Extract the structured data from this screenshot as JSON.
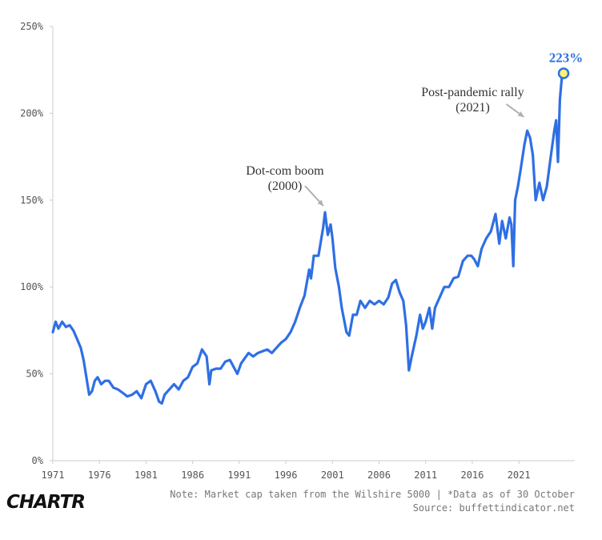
{
  "chart_data": {
    "type": "line",
    "title": "",
    "xlabel": "",
    "ylabel": "",
    "x_ticks": [
      "1971",
      "1976",
      "1981",
      "1986",
      "1991",
      "1996",
      "2001",
      "2006",
      "2011",
      "2016",
      "2021"
    ],
    "y_ticks": [
      "0%",
      "50%",
      "100%",
      "150%",
      "200%",
      "250%"
    ],
    "ylim": [
      0,
      250
    ],
    "xlim": [
      1971,
      2027
    ],
    "grid": false,
    "series": [
      {
        "color": "#2f6fe4",
        "x": [
          1971.0,
          1971.3,
          1971.6,
          1972.0,
          1972.4,
          1972.8,
          1973.2,
          1973.6,
          1974.0,
          1974.3,
          1974.6,
          1974.9,
          1975.2,
          1975.5,
          1975.8,
          1976.2,
          1976.6,
          1977.0,
          1977.5,
          1978.0,
          1978.5,
          1979.0,
          1979.5,
          1980.0,
          1980.5,
          1981.0,
          1981.5,
          1982.0,
          1982.4,
          1982.7,
          1983.0,
          1983.5,
          1984.0,
          1984.5,
          1985.0,
          1985.5,
          1986.0,
          1986.5,
          1987.0,
          1987.5,
          1987.8,
          1988.0,
          1988.5,
          1989.0,
          1989.5,
          1990.0,
          1990.5,
          1990.8,
          1991.2,
          1991.6,
          1992.0,
          1992.5,
          1993.0,
          1993.5,
          1994.0,
          1994.5,
          1995.0,
          1995.5,
          1996.0,
          1996.5,
          1997.0,
          1997.5,
          1998.0,
          1998.5,
          1998.7,
          1999.0,
          1999.5,
          2000.0,
          2000.2,
          2000.5,
          2000.8,
          2001.0,
          2001.3,
          2001.7,
          2002.0,
          2002.5,
          2002.8,
          2003.2,
          2003.6,
          2004.0,
          2004.5,
          2005.0,
          2005.5,
          2006.0,
          2006.5,
          2007.0,
          2007.4,
          2007.8,
          2008.2,
          2008.6,
          2008.9,
          2009.2,
          2009.5,
          2010.0,
          2010.4,
          2010.7,
          2011.0,
          2011.4,
          2011.7,
          2012.0,
          2012.5,
          2013.0,
          2013.5,
          2014.0,
          2014.5,
          2015.0,
          2015.5,
          2015.9,
          2016.2,
          2016.6,
          2017.0,
          2017.5,
          2018.0,
          2018.5,
          2018.9,
          2019.2,
          2019.6,
          2020.0,
          2020.2,
          2020.4,
          2020.6,
          2020.9,
          2021.2,
          2021.6,
          2021.9,
          2022.2,
          2022.5,
          2022.8,
          2023.2,
          2023.6,
          2024.0,
          2024.4,
          2024.8,
          2025.0,
          2025.2,
          2025.4,
          2025.6,
          2025.8
        ],
        "y": [
          74,
          80,
          76,
          80,
          77,
          78,
          75,
          70,
          65,
          58,
          48,
          38,
          40,
          46,
          48,
          44,
          46,
          46,
          42,
          41,
          39,
          37,
          38,
          40,
          36,
          44,
          46,
          40,
          34,
          33,
          38,
          41,
          44,
          41,
          46,
          48,
          54,
          56,
          64,
          60,
          44,
          52,
          53,
          53,
          57,
          58,
          53,
          50,
          56,
          59,
          62,
          60,
          62,
          63,
          64,
          62,
          65,
          68,
          70,
          74,
          80,
          88,
          95,
          110,
          105,
          118,
          118,
          134,
          143,
          130,
          136,
          128,
          111,
          100,
          88,
          74,
          72,
          84,
          84,
          92,
          88,
          92,
          90,
          92,
          90,
          94,
          102,
          104,
          97,
          92,
          78,
          52,
          60,
          72,
          84,
          76,
          80,
          88,
          76,
          88,
          94,
          100,
          100,
          105,
          106,
          115,
          118,
          118,
          116,
          112,
          122,
          128,
          132,
          142,
          125,
          138,
          128,
          140,
          136,
          112,
          150,
          158,
          168,
          182,
          190,
          186,
          176,
          150,
          160,
          150,
          158,
          174,
          190,
          196,
          172,
          208,
          220,
          223
        ]
      }
    ],
    "annotations": [
      {
        "id": "dotcom",
        "line1": "Dot-com boom",
        "line2": "(2000)"
      },
      {
        "id": "pandemic",
        "line1": "Post-pandemic rally",
        "line2": "(2021)"
      }
    ],
    "end_label": "223%",
    "end_marker_fill": "#fff176"
  },
  "footer": {
    "note": "Note: Market cap taken from the Wilshire 5000 | *Data as of 30 October",
    "source": "Source: buffettindicator.net",
    "logo": "CHARTR"
  }
}
